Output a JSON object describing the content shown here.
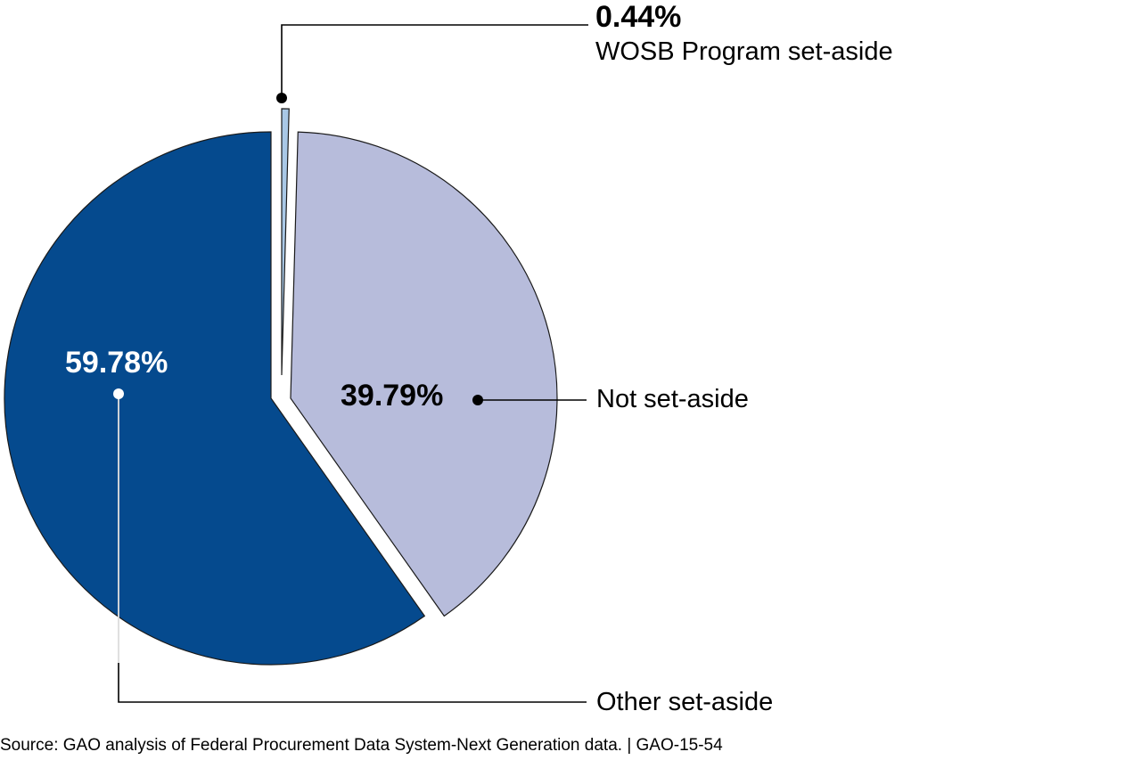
{
  "chart_data": {
    "type": "pie",
    "slices": [
      {
        "label": "WOSB Program set-aside",
        "value": 0.44,
        "value_label": "0.44%",
        "color": "#a9c8e6"
      },
      {
        "label": "Not set-aside",
        "value": 39.79,
        "value_label": "39.79%",
        "color": "#b7bcdb"
      },
      {
        "label": "Other set-aside",
        "value": 59.78,
        "value_label": "59.78%",
        "color": "#054a8e"
      }
    ],
    "exploded": true,
    "start_angle": "12 o'clock",
    "direction": "clockwise",
    "legend": "callout labels"
  },
  "footer": {
    "source": "Source: GAO analysis of Federal Procurement Data System-Next Generation data.  |  GAO-15-54"
  }
}
